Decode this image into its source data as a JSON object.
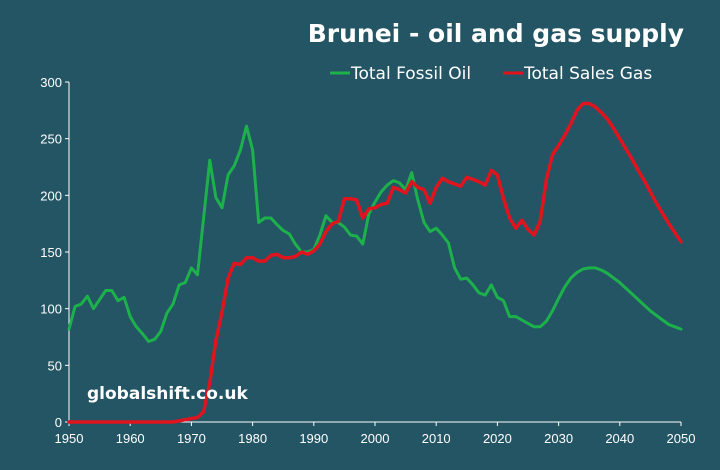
{
  "chart_data": {
    "type": "line",
    "title": "Brunei - oil and gas supply",
    "watermark": "globalshift.co.uk",
    "xlim": [
      1950,
      2050
    ],
    "ylim": [
      0,
      300
    ],
    "x_ticks": [
      "1950",
      "1960",
      "1970",
      "1980",
      "1990",
      "2000",
      "2010",
      "2020",
      "2030",
      "2040",
      "2050"
    ],
    "y_ticks": [
      "0",
      "50",
      "100",
      "150",
      "200",
      "250",
      "300"
    ],
    "legend_position": "top-right",
    "grid": false,
    "series": [
      {
        "name": "Total Fossil Oil",
        "color": "#1db14b",
        "points": [
          [
            1950,
            82
          ],
          [
            1951,
            102
          ],
          [
            1952,
            104
          ],
          [
            1953,
            111
          ],
          [
            1954,
            100
          ],
          [
            1955,
            108
          ],
          [
            1956,
            116
          ],
          [
            1957,
            116
          ],
          [
            1958,
            107
          ],
          [
            1959,
            110
          ],
          [
            1960,
            93
          ],
          [
            1961,
            84
          ],
          [
            1962,
            78
          ],
          [
            1963,
            71
          ],
          [
            1964,
            73
          ],
          [
            1965,
            80
          ],
          [
            1966,
            96
          ],
          [
            1967,
            104
          ],
          [
            1968,
            121
          ],
          [
            1969,
            123
          ],
          [
            1970,
            136
          ],
          [
            1971,
            130
          ],
          [
            1972,
            180
          ],
          [
            1973,
            231
          ],
          [
            1974,
            198
          ],
          [
            1975,
            189
          ],
          [
            1976,
            218
          ],
          [
            1977,
            226
          ],
          [
            1978,
            240
          ],
          [
            1979,
            261
          ],
          [
            1980,
            240
          ],
          [
            1981,
            176
          ],
          [
            1982,
            180
          ],
          [
            1983,
            180
          ],
          [
            1984,
            174
          ],
          [
            1985,
            169
          ],
          [
            1986,
            166
          ],
          [
            1987,
            157
          ],
          [
            1988,
            150
          ],
          [
            1989,
            150
          ],
          [
            1990,
            152
          ],
          [
            1991,
            165
          ],
          [
            1992,
            182
          ],
          [
            1993,
            176
          ],
          [
            1994,
            176
          ],
          [
            1995,
            172
          ],
          [
            1996,
            165
          ],
          [
            1997,
            164
          ],
          [
            1998,
            157
          ],
          [
            1999,
            184
          ],
          [
            2000,
            194
          ],
          [
            2001,
            203
          ],
          [
            2002,
            209
          ],
          [
            2003,
            213
          ],
          [
            2004,
            211
          ],
          [
            2005,
            205
          ],
          [
            2006,
            220
          ],
          [
            2007,
            196
          ],
          [
            2008,
            176
          ],
          [
            2009,
            168
          ],
          [
            2010,
            171
          ],
          [
            2011,
            165
          ],
          [
            2012,
            158
          ],
          [
            2013,
            136
          ],
          [
            2014,
            126
          ],
          [
            2015,
            127
          ],
          [
            2016,
            121
          ],
          [
            2017,
            114
          ],
          [
            2018,
            112
          ],
          [
            2019,
            121
          ],
          [
            2020,
            110
          ],
          [
            2021,
            107
          ],
          [
            2022,
            93
          ],
          [
            2023,
            93
          ],
          [
            2024,
            90
          ],
          [
            2025,
            87
          ],
          [
            2026,
            84
          ],
          [
            2027,
            84
          ],
          [
            2028,
            89
          ],
          [
            2029,
            98
          ],
          [
            2030,
            109
          ],
          [
            2031,
            119
          ],
          [
            2032,
            127
          ],
          [
            2033,
            132
          ],
          [
            2034,
            135
          ],
          [
            2035,
            136
          ],
          [
            2036,
            136
          ],
          [
            2037,
            134
          ],
          [
            2038,
            131
          ],
          [
            2039,
            127
          ],
          [
            2040,
            123
          ],
          [
            2041,
            118
          ],
          [
            2042,
            113
          ],
          [
            2043,
            108
          ],
          [
            2044,
            103
          ],
          [
            2045,
            98
          ],
          [
            2046,
            94
          ],
          [
            2047,
            90
          ],
          [
            2048,
            86
          ],
          [
            2049,
            84
          ],
          [
            2050,
            82
          ]
        ]
      },
      {
        "name": "Total Sales Gas",
        "color": "#e0141e",
        "points": [
          [
            1950,
            0
          ],
          [
            1955,
            0
          ],
          [
            1960,
            0
          ],
          [
            1965,
            0
          ],
          [
            1967,
            0
          ],
          [
            1968,
            1
          ],
          [
            1969,
            2
          ],
          [
            1970,
            3
          ],
          [
            1971,
            4
          ],
          [
            1972,
            9
          ],
          [
            1973,
            35
          ],
          [
            1974,
            72
          ],
          [
            1975,
            97
          ],
          [
            1976,
            127
          ],
          [
            1977,
            140
          ],
          [
            1978,
            139
          ],
          [
            1979,
            145
          ],
          [
            1980,
            145
          ],
          [
            1981,
            142
          ],
          [
            1982,
            142
          ],
          [
            1983,
            147
          ],
          [
            1984,
            148
          ],
          [
            1985,
            145
          ],
          [
            1986,
            145
          ],
          [
            1987,
            146
          ],
          [
            1988,
            150
          ],
          [
            1989,
            148
          ],
          [
            1990,
            151
          ],
          [
            1991,
            157
          ],
          [
            1992,
            168
          ],
          [
            1993,
            175
          ],
          [
            1994,
            177
          ],
          [
            1995,
            197
          ],
          [
            1996,
            197
          ],
          [
            1997,
            196
          ],
          [
            1998,
            180
          ],
          [
            1999,
            188
          ],
          [
            2000,
            189
          ],
          [
            2001,
            192
          ],
          [
            2002,
            193
          ],
          [
            2003,
            207
          ],
          [
            2004,
            205
          ],
          [
            2005,
            202
          ],
          [
            2006,
            212
          ],
          [
            2007,
            207
          ],
          [
            2008,
            205
          ],
          [
            2009,
            193
          ],
          [
            2010,
            207
          ],
          [
            2011,
            215
          ],
          [
            2012,
            212
          ],
          [
            2013,
            210
          ],
          [
            2014,
            208
          ],
          [
            2015,
            216
          ],
          [
            2016,
            214
          ],
          [
            2017,
            212
          ],
          [
            2018,
            209
          ],
          [
            2019,
            222
          ],
          [
            2020,
            218
          ],
          [
            2021,
            197
          ],
          [
            2022,
            180
          ],
          [
            2023,
            171
          ],
          [
            2024,
            178
          ],
          [
            2025,
            170
          ],
          [
            2026,
            165
          ],
          [
            2027,
            177
          ],
          [
            2028,
            214
          ],
          [
            2029,
            236
          ],
          [
            2030,
            244
          ],
          [
            2031,
            253
          ],
          [
            2032,
            263
          ],
          [
            2033,
            275
          ],
          [
            2034,
            281
          ],
          [
            2035,
            281
          ],
          [
            2036,
            278
          ],
          [
            2037,
            273
          ],
          [
            2038,
            267
          ],
          [
            2039,
            259
          ],
          [
            2040,
            250
          ],
          [
            2041,
            241
          ],
          [
            2042,
            232
          ],
          [
            2043,
            222
          ],
          [
            2044,
            213
          ],
          [
            2045,
            203
          ],
          [
            2046,
            193
          ],
          [
            2047,
            184
          ],
          [
            2048,
            175
          ],
          [
            2049,
            167
          ],
          [
            2050,
            159
          ]
        ]
      }
    ]
  }
}
